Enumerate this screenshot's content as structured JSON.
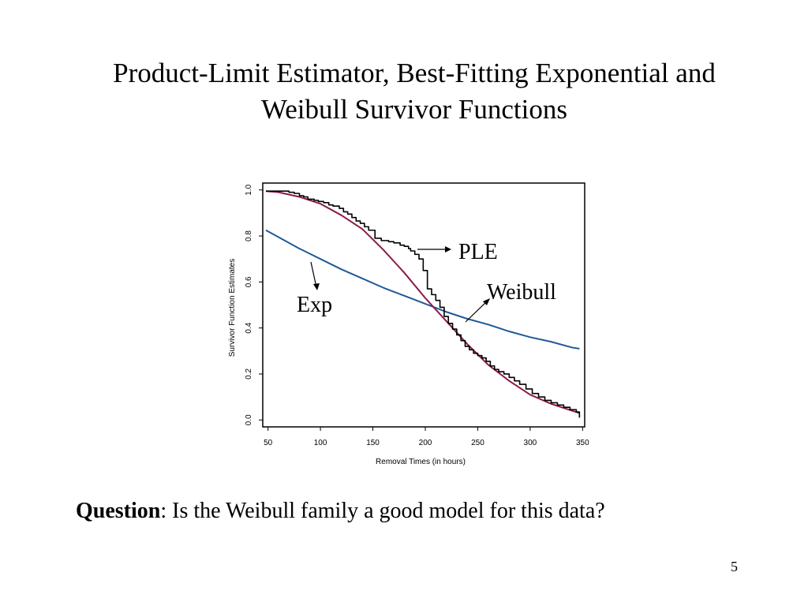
{
  "slide": {
    "title_line1": "Product-Limit Estimator, Best-Fitting Exponential and",
    "title_line2": "Weibull Survivor Functions",
    "question_label": "Question",
    "question_text": ": Is the Weibull family a good model for this data?",
    "page_number": "5"
  },
  "chart_data": {
    "type": "line",
    "title": "",
    "xlabel": "Removal Times (in hours)",
    "ylabel": "Survivor Function Estimates",
    "xlim": [
      45,
      352
    ],
    "ylim": [
      -0.03,
      1.03
    ],
    "xticks": [
      "50",
      "100",
      "150",
      "200",
      "250",
      "300",
      "350"
    ],
    "yticks": [
      "0.0",
      "0.2",
      "0.4",
      "0.6",
      "0.8",
      "1.0"
    ],
    "annotations": [
      {
        "text": "PLE",
        "target": "PLE"
      },
      {
        "text": "Weibull",
        "target": "Weibull"
      },
      {
        "text": "Exp",
        "target": "Exp"
      }
    ],
    "colors": {
      "ple": "#000000",
      "weibull": "#8b1a4a",
      "exp": "#1f5a96"
    },
    "series": [
      {
        "id": "PLE",
        "step": true,
        "x": [
          48,
          62,
          70,
          75,
          80,
          84,
          88,
          94,
          98,
          103,
          108,
          112,
          118,
          122,
          126,
          130,
          134,
          138,
          142,
          146,
          152,
          158,
          165,
          170,
          176,
          180,
          184,
          186,
          190,
          194,
          198,
          202,
          206,
          210,
          214,
          218,
          222,
          226,
          230,
          234,
          238,
          242,
          246,
          250,
          254,
          258,
          262,
          266,
          270,
          275,
          280,
          285,
          290,
          296,
          302,
          308,
          314,
          320,
          326,
          332,
          338,
          344,
          347
        ],
        "y": [
          0.995,
          0.995,
          0.99,
          0.985,
          0.975,
          0.97,
          0.96,
          0.955,
          0.95,
          0.945,
          0.935,
          0.93,
          0.92,
          0.905,
          0.895,
          0.88,
          0.865,
          0.855,
          0.84,
          0.825,
          0.79,
          0.78,
          0.775,
          0.77,
          0.76,
          0.755,
          0.745,
          0.735,
          0.72,
          0.7,
          0.65,
          0.57,
          0.545,
          0.52,
          0.49,
          0.45,
          0.42,
          0.395,
          0.37,
          0.345,
          0.32,
          0.305,
          0.29,
          0.28,
          0.27,
          0.255,
          0.235,
          0.22,
          0.21,
          0.2,
          0.185,
          0.17,
          0.155,
          0.135,
          0.115,
          0.1,
          0.085,
          0.075,
          0.065,
          0.055,
          0.045,
          0.035,
          0.01
        ]
      },
      {
        "id": "Weibull",
        "x": [
          48,
          60,
          80,
          100,
          120,
          140,
          160,
          180,
          200,
          220,
          240,
          260,
          280,
          300,
          320,
          340,
          347
        ],
        "y": [
          0.995,
          0.99,
          0.97,
          0.94,
          0.89,
          0.83,
          0.74,
          0.64,
          0.53,
          0.43,
          0.33,
          0.24,
          0.17,
          0.11,
          0.07,
          0.04,
          0.03
        ]
      },
      {
        "id": "Exp",
        "x": [
          48,
          60,
          80,
          100,
          120,
          140,
          160,
          180,
          200,
          220,
          240,
          260,
          280,
          300,
          320,
          340,
          347
        ],
        "y": [
          0.825,
          0.795,
          0.745,
          0.7,
          0.655,
          0.615,
          0.575,
          0.54,
          0.505,
          0.47,
          0.44,
          0.415,
          0.385,
          0.36,
          0.34,
          0.315,
          0.31
        ]
      }
    ]
  }
}
